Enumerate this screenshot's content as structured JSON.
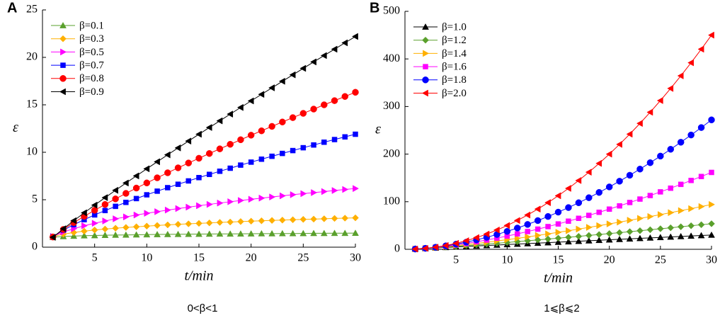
{
  "chart_data": [
    {
      "type": "line",
      "panel": "A",
      "caption": "0<β<1",
      "xlabel": "t/min",
      "ylabel": "ε",
      "xlim": [
        0,
        30
      ],
      "xticks": [
        5,
        10,
        15,
        20,
        25,
        30
      ],
      "ylim": [
        0,
        25
      ],
      "yticks": [
        0,
        5,
        10,
        15,
        20,
        25
      ],
      "legend": "upper left",
      "x": [
        1,
        2,
        3,
        4,
        5,
        6,
        7,
        8,
        9,
        10,
        11,
        12,
        13,
        14,
        15,
        16,
        17,
        18,
        19,
        20,
        21,
        22,
        23,
        24,
        25,
        26,
        27,
        28,
        29,
        30
      ],
      "series": [
        {
          "name": "β=0.1",
          "color": "#5aa02c",
          "marker": "triangle-up",
          "values": [
            1.05,
            1.13,
            1.17,
            1.21,
            1.23,
            1.26,
            1.28,
            1.29,
            1.31,
            1.32,
            1.34,
            1.35,
            1.36,
            1.37,
            1.38,
            1.39,
            1.4,
            1.4,
            1.41,
            1.42,
            1.43,
            1.43,
            1.44,
            1.44,
            1.45,
            1.46,
            1.46,
            1.47,
            1.47,
            1.48
          ]
        },
        {
          "name": "β=0.3",
          "color": "#ffb000",
          "marker": "diamond",
          "values": [
            1.11,
            1.37,
            1.55,
            1.69,
            1.81,
            1.91,
            2.0,
            2.08,
            2.15,
            2.22,
            2.29,
            2.35,
            2.41,
            2.46,
            2.51,
            2.56,
            2.61,
            2.65,
            2.7,
            2.74,
            2.78,
            2.82,
            2.85,
            2.89,
            2.93,
            2.96,
            2.99,
            3.03,
            3.06,
            3.09
          ]
        },
        {
          "name": "β=0.5",
          "color": "#ff00ff",
          "marker": "triangle-right",
          "values": [
            1.13,
            1.6,
            1.95,
            2.26,
            2.52,
            2.76,
            2.99,
            3.19,
            3.39,
            3.57,
            3.74,
            3.91,
            4.07,
            4.22,
            4.37,
            4.51,
            4.65,
            4.79,
            4.92,
            5.05,
            5.17,
            5.29,
            5.41,
            5.53,
            5.64,
            5.75,
            5.86,
            5.97,
            6.08,
            6.18
          ]
        },
        {
          "name": "β=0.7",
          "color": "#0000ff",
          "marker": "square",
          "values": [
            1.1,
            1.79,
            2.37,
            2.9,
            3.4,
            3.86,
            4.3,
            4.72,
            5.12,
            5.52,
            5.9,
            6.27,
            6.63,
            6.98,
            7.33,
            7.67,
            8.0,
            8.32,
            8.65,
            8.96,
            9.27,
            9.58,
            9.88,
            10.18,
            10.48,
            10.77,
            11.06,
            11.34,
            11.62,
            11.9
          ]
        },
        {
          "name": "β=0.8",
          "color": "#ff0000",
          "marker": "circle",
          "values": [
            1.07,
            1.87,
            2.59,
            3.25,
            3.89,
            4.5,
            5.09,
            5.67,
            6.23,
            6.77,
            7.31,
            7.84,
            8.36,
            8.87,
            9.37,
            9.87,
            10.36,
            10.84,
            11.32,
            11.8,
            12.26,
            12.73,
            13.19,
            13.65,
            14.1,
            14.55,
            15.0,
            15.44,
            15.88,
            16.32
          ]
        },
        {
          "name": "β=0.9",
          "color": "#000000",
          "marker": "triangle-left",
          "values": [
            1.04,
            1.94,
            2.79,
            3.62,
            4.43,
            5.22,
            5.99,
            6.76,
            7.51,
            8.26,
            9.0,
            9.73,
            10.46,
            11.18,
            11.9,
            12.61,
            13.31,
            14.02,
            14.72,
            15.41,
            16.1,
            16.79,
            17.48,
            18.16,
            18.84,
            19.52,
            20.19,
            20.86,
            21.53,
            22.2
          ]
        }
      ]
    },
    {
      "type": "line",
      "panel": "B",
      "caption": "1⩽β⩽2",
      "xlabel": "t/min",
      "ylabel": "ε",
      "xlim": [
        0,
        30
      ],
      "xticks": [
        5,
        10,
        15,
        20,
        25,
        30
      ],
      "ylim": [
        0,
        500
      ],
      "yticks": [
        0,
        100,
        200,
        300,
        400,
        500
      ],
      "legend": "upper left",
      "x": [
        1,
        2,
        3,
        4,
        5,
        6,
        7,
        8,
        9,
        10,
        11,
        12,
        13,
        14,
        15,
        16,
        17,
        18,
        19,
        20,
        21,
        22,
        23,
        24,
        25,
        26,
        27,
        28,
        29,
        30
      ],
      "series": [
        {
          "name": "β=1.0",
          "color": "#000000",
          "marker": "triangle-up",
          "values": [
            1,
            2,
            3,
            4,
            5,
            6,
            7,
            8,
            9,
            10,
            11,
            12,
            13,
            14,
            15,
            16,
            17,
            18,
            19,
            20,
            21,
            22,
            23,
            24,
            25,
            26,
            27,
            28,
            29,
            30
          ]
        },
        {
          "name": "β=1.2",
          "color": "#5aa02c",
          "marker": "diamond",
          "values": [
            0.91,
            2.09,
            3.39,
            4.79,
            6.26,
            7.79,
            9.38,
            11.01,
            12.68,
            14.38,
            16.13,
            17.9,
            19.71,
            21.54,
            23.4,
            25.28,
            27.19,
            29.12,
            31.07,
            33.05,
            35.04,
            37.05,
            39.08,
            41.13,
            43.19,
            45.27,
            47.37,
            49.48,
            51.62,
            53.76
          ]
        },
        {
          "name": "β=1.4",
          "color": "#ffb000",
          "marker": "triangle-right",
          "values": [
            0.81,
            2.12,
            3.75,
            5.61,
            7.66,
            9.89,
            12.27,
            14.8,
            17.45,
            20.22,
            23.11,
            26.1,
            29.2,
            32.39,
            35.67,
            39.04,
            42.5,
            46.05,
            49.67,
            53.36,
            57.13,
            60.98,
            64.9,
            68.88,
            72.94,
            77.04,
            81.23,
            85.46,
            89.78,
            94.13
          ]
        },
        {
          "name": "β=1.6",
          "color": "#ff00ff",
          "marker": "square",
          "values": [
            0.7,
            2.12,
            4.06,
            6.43,
            9.19,
            12.3,
            15.74,
            19.49,
            23.53,
            27.85,
            32.44,
            37.28,
            42.38,
            47.7,
            53.28,
            59.07,
            65.09,
            71.32,
            77.76,
            84.41,
            91.28,
            98.33,
            105.58,
            113.01,
            120.65,
            128.44,
            136.43,
            144.64,
            152.98,
            161.52
          ]
        },
        {
          "name": "β=1.8",
          "color": "#0000ff",
          "marker": "circle",
          "values": [
            0.6,
            2.08,
            4.31,
            7.23,
            10.81,
            15.01,
            19.8,
            25.19,
            31.14,
            37.64,
            44.68,
            52.25,
            60.35,
            68.97,
            78.09,
            87.7,
            97.82,
            108.41,
            119.5,
            131.06,
            143.09,
            155.59,
            168.54,
            181.96,
            195.84,
            210.17,
            224.94,
            240.17,
            255.8,
            271.92
          ]
        },
        {
          "name": "β=2.0",
          "color": "#ff0000",
          "marker": "triangle-left",
          "values": [
            0.5,
            2,
            4.5,
            8,
            12.5,
            18,
            24.5,
            32,
            40.5,
            50,
            60.5,
            72,
            84.5,
            98,
            112.5,
            128,
            144.5,
            162,
            180.5,
            200,
            220.5,
            242,
            264.5,
            288,
            312.5,
            338,
            364.5,
            392,
            420.5,
            450
          ]
        }
      ]
    }
  ]
}
